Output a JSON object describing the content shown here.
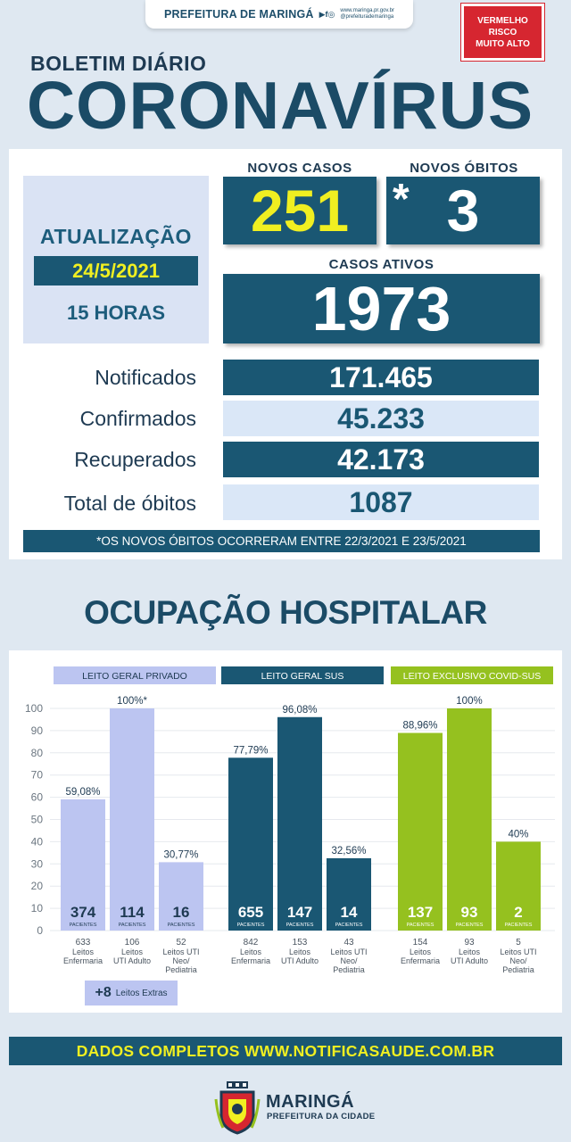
{
  "header": {
    "organization": "PREFEITURA DE MARINGÁ",
    "social_icons": "▶f◎",
    "site_line1": "www.maringa.pr.gov.br",
    "site_line2": "@prefeiturademaringa",
    "risk_line1": "VERMELHO",
    "risk_line2": "RISCO",
    "risk_line3": "MUITO ALTO",
    "risk_color": "#d62630"
  },
  "title": {
    "bulletin": "BOLETIM DIÁRIO",
    "main": "CORONAVÍRUS"
  },
  "update": {
    "label": "ATUALIZAÇÃO",
    "date": "24/5/2021",
    "time": "15 HORAS"
  },
  "kpis": {
    "new_cases_label": "NOVOS CASOS",
    "new_cases_value": "251",
    "new_deaths_label": "NOVOS ÓBITOS",
    "new_deaths_marker": "*",
    "new_deaths_value": "3",
    "active_cases_label": "CASOS ATIVOS",
    "active_cases_value": "1973"
  },
  "totals": [
    {
      "label": "Notificados",
      "value": "171.465"
    },
    {
      "label": "Confirmados",
      "value": "45.233"
    },
    {
      "label": "Recuperados",
      "value": "42.173"
    },
    {
      "label": "Total de óbitos",
      "value": "1087"
    }
  ],
  "footnote": "*OS NOVOS ÓBITOS OCORRERAM ENTRE 22/3/2021 E 23/5/2021",
  "hospital": {
    "title": "OCUPAÇÃO HOSPITALAR",
    "extra_count": "+8",
    "extra_label": "Leitos Extras"
  },
  "chart_data": {
    "type": "bar",
    "ylim": [
      0,
      100
    ],
    "yticks": [
      0,
      10,
      20,
      30,
      40,
      50,
      60,
      70,
      80,
      90,
      100
    ],
    "patients_label": "PACIENTES",
    "groups": [
      {
        "name": "LEITO GERAL PRIVADO",
        "color": "#bcc5f1",
        "bars": [
          {
            "value": 59.08,
            "label": "59,08%",
            "patients": "374",
            "beds": "633",
            "bed_type": [
              "Leitos",
              "Enfermaria"
            ]
          },
          {
            "value": 100,
            "label": "100%*",
            "patients": "114",
            "beds": "106",
            "bed_type": [
              "Leitos",
              "UTI Adulto"
            ]
          },
          {
            "value": 30.77,
            "label": "30,77%",
            "patients": "16",
            "beds": "52",
            "bed_type": [
              "Leitos UTI",
              "Neo/",
              "Pediatria"
            ]
          }
        ]
      },
      {
        "name": "LEITO GERAL SUS",
        "color": "#1a5773",
        "bars": [
          {
            "value": 77.79,
            "label": "77,79%",
            "patients": "655",
            "beds": "842",
            "bed_type": [
              "Leitos",
              "Enfermaria"
            ]
          },
          {
            "value": 96.08,
            "label": "96,08%",
            "patients": "147",
            "beds": "153",
            "bed_type": [
              "Leitos",
              "UTI Adulto"
            ]
          },
          {
            "value": 32.56,
            "label": "32,56%",
            "patients": "14",
            "beds": "43",
            "bed_type": [
              "Leitos UTI",
              "Neo/",
              "Pediatria"
            ]
          }
        ]
      },
      {
        "name": "LEITO EXCLUSIVO COVID-SUS",
        "color": "#95c11f",
        "bars": [
          {
            "value": 88.96,
            "label": "88,96%",
            "patients": "137",
            "beds": "154",
            "bed_type": [
              "Leitos",
              "Enfermaria"
            ]
          },
          {
            "value": 100,
            "label": "100%",
            "patients": "93",
            "beds": "93",
            "bed_type": [
              "Leitos",
              "UTI Adulto"
            ]
          },
          {
            "value": 40,
            "label": "40%",
            "patients": "2",
            "beds": "5",
            "bed_type": [
              "Leitos UTI",
              "Neo/",
              "Pediatria"
            ]
          }
        ]
      }
    ]
  },
  "footer": {
    "text": "DADOS COMPLETOS  WWW.NOTIFICASAUDE.COM.BR",
    "city": "MARINGÁ",
    "city_sub": "PREFEITURA DA CIDADE"
  }
}
